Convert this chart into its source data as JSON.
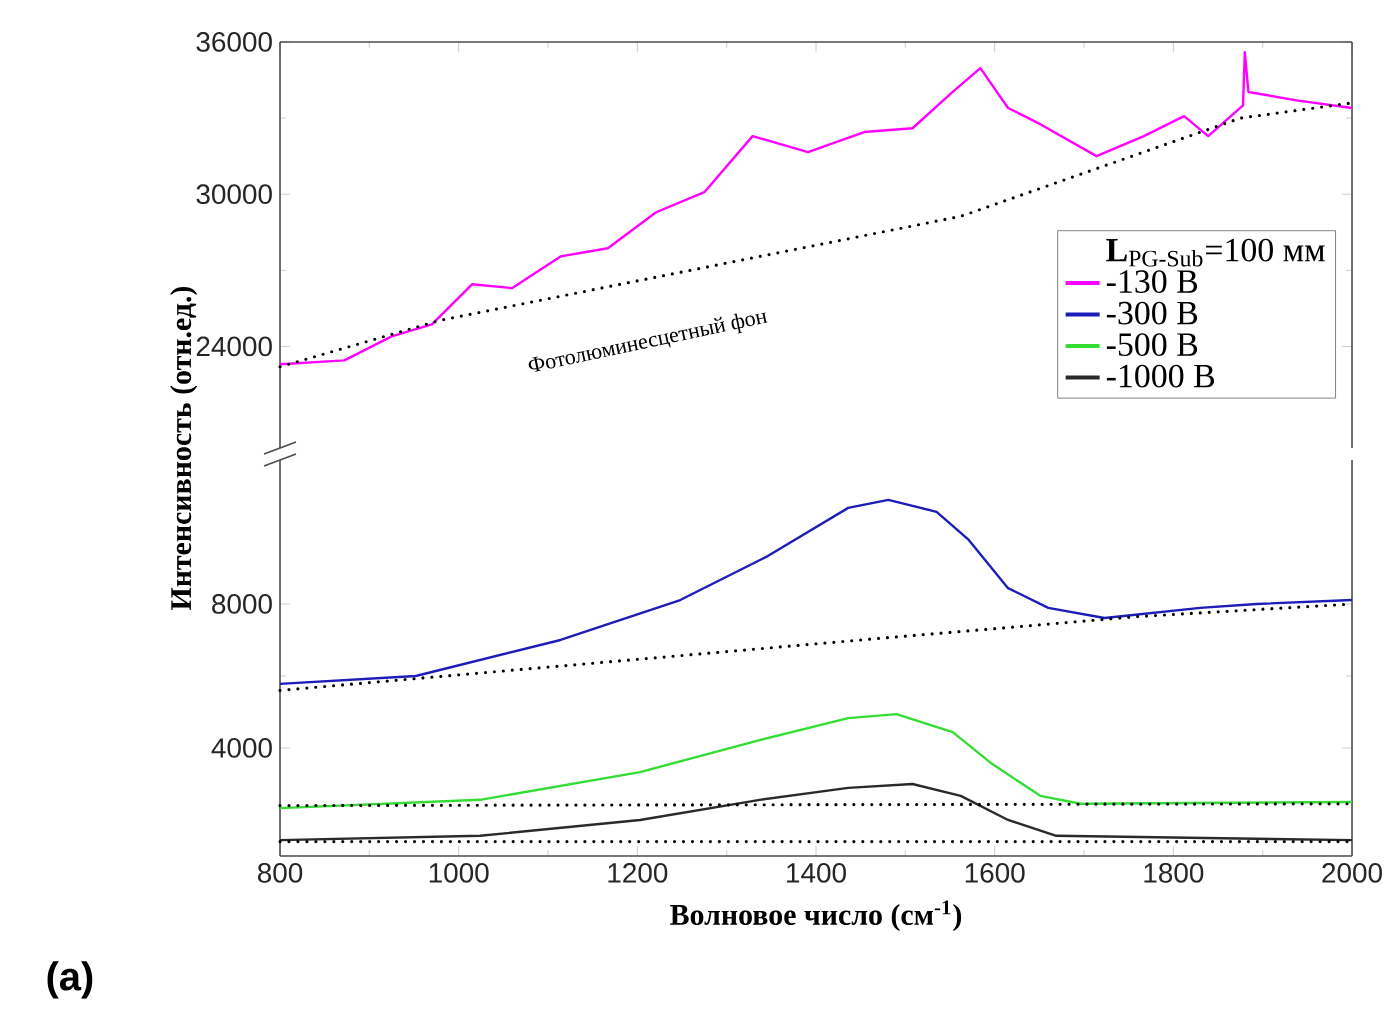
{
  "chart_data": [
    {
      "type": "line",
      "xlim": [
        800,
        2000
      ],
      "ylim": [
        20000,
        36000
      ],
      "xticks": [
        800,
        1000,
        1200,
        1400,
        1600,
        1800,
        2000
      ],
      "yticks": [
        24000,
        30000,
        36000
      ],
      "tick_labels": "y",
      "marker": "none",
      "line_style": "solid",
      "annotations": [
        "Фотолюминесцетный фон"
      ],
      "series": [
        {
          "name": "-130 В",
          "color": "#ff00ff",
          "x": [
            800,
            872,
            925,
            970,
            1015,
            1060,
            1114,
            1167,
            1221,
            1275,
            1329,
            1391,
            1454,
            1508,
            1553,
            1584,
            1615,
            1651,
            1714,
            1767,
            1812,
            1839,
            1878,
            1880,
            1884,
            1938,
            2000
          ],
          "values": [
            23300,
            23450,
            24400,
            24870,
            26450,
            26300,
            27550,
            27870,
            29290,
            30080,
            32290,
            31660,
            32450,
            32600,
            34030,
            34970,
            33400,
            32760,
            31500,
            32290,
            33080,
            32290,
            33500,
            35600,
            34030,
            33700,
            33400
          ]
        },
        {
          "color": "#000000",
          "line_style": "dotted",
          "x": [
            800,
            979,
            1562,
            1875,
            2000
          ],
          "values": [
            23200,
            25030,
            29130,
            33000,
            33600
          ]
        }
      ]
    },
    {
      "type": "line",
      "xlim": [
        800,
        2000
      ],
      "ylim": [
        1000,
        12000
      ],
      "xticks": [
        800,
        1000,
        1200,
        1400,
        1600,
        1800,
        2000
      ],
      "yticks": [
        4000,
        8000
      ],
      "marker": "none",
      "line_style": "solid",
      "xlabel": "Волновое число (см$^{-1}$)",
      "ylabel": "Интенсивность (отн.ед.)",
      "legend": "top right",
      "legend_title": "**L**$_{PG-Sub}$=100 мм",
      "annotations": [
        "(a)"
      ],
      "series": [
        {
          "name": "-300 В",
          "color": "#1c1cb8",
          "x": [
            800,
            952,
            1114,
            1248,
            1346,
            1436,
            1481,
            1535,
            1571,
            1615,
            1660,
            1723,
            1830,
            1893,
            2000
          ],
          "values": [
            5780,
            6000,
            7000,
            8110,
            9330,
            10670,
            10890,
            10560,
            9780,
            8440,
            7890,
            7610,
            7890,
            8000,
            8110
          ]
        },
        {
          "name": "-500 В",
          "color": "#33dd33",
          "x": [
            800,
            1024,
            1203,
            1337,
            1436,
            1490,
            1553,
            1597,
            1651,
            1696,
            2000
          ],
          "values": [
            2330,
            2560,
            3330,
            4220,
            4830,
            4940,
            4440,
            3560,
            2670,
            2450,
            2500
          ]
        },
        {
          "name": "-1000 В",
          "color": "#2a2a2a",
          "x": [
            800,
            1024,
            1203,
            1337,
            1436,
            1508,
            1562,
            1615,
            1669,
            2000
          ],
          "values": [
            1440,
            1560,
            2000,
            2560,
            2890,
            3000,
            2670,
            2000,
            1560,
            1440
          ]
        },
        {
          "color": "#000000",
          "line_style": "dotted",
          "x": [
            800,
            1450,
            1760,
            2000
          ],
          "values": [
            5600,
            7000,
            7650,
            8000
          ]
        },
        {
          "color": "#000000",
          "line_style": "dotted",
          "x": [
            800,
            2000
          ],
          "values": [
            2400,
            2450
          ]
        },
        {
          "color": "#000000",
          "line_style": "dotted",
          "x": [
            800,
            2000
          ],
          "values": [
            1400,
            1400
          ]
        }
      ]
    }
  ]
}
